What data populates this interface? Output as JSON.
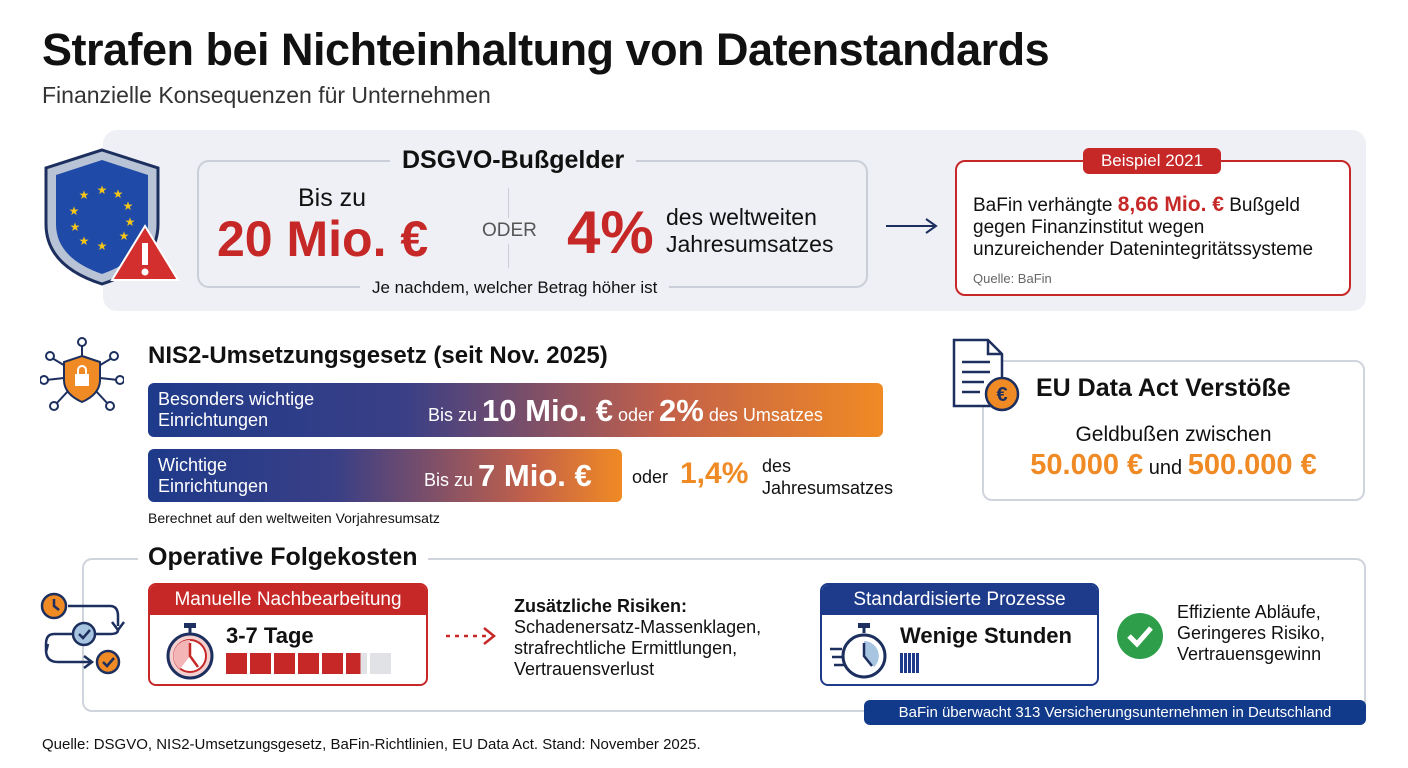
{
  "header": {
    "title": "Strafen bei Nichteinhaltung von Datenstandards",
    "subtitle": "Finanzielle Konsequenzen für Unternehmen"
  },
  "dsgvo": {
    "title": "DSGVO-Bußgelder",
    "bis_zu": "Bis zu",
    "amount": "20 Mio. €",
    "oder": "ODER",
    "percent": "4%",
    "percent_desc_1": "des weltweiten",
    "percent_desc_2": "Jahresumsatzes",
    "note": "Je nachdem, welcher Betrag höher ist"
  },
  "example": {
    "badge": "Beispiel 2021",
    "text_1": "BaFin verhängte ",
    "amount": "8,66 Mio. €",
    "text_2": " Bußgeld",
    "line_2": "gegen Finanzinstitut wegen",
    "line_3": "unzureichender Datenintegritätssysteme",
    "source": "Quelle: BaFin"
  },
  "nis2": {
    "title": "NIS2-Umsetzungsgesetz (seit Nov. 2025)",
    "row1": {
      "label_1": "Besonders wichtige",
      "label_2": "Einrichtungen",
      "bis": "Bis zu",
      "amount": "10 Mio. €",
      "oder": "oder",
      "percent": "2%",
      "desc": "des Umsatzes"
    },
    "row2": {
      "label_1": "Wichtige",
      "label_2": "Einrichtungen",
      "bis": "Bis zu",
      "amount": "7 Mio. €",
      "oder": "oder",
      "percent": "1,4%",
      "desc_1": "des",
      "desc_2": "Jahresumsatzes"
    },
    "note": "Berechnet auf den weltweiten Vorjahresumsatz"
  },
  "data_act": {
    "title": "EU Data Act Verstöße",
    "line": "Geldbußen zwischen",
    "min": "50.000 €",
    "und": "und",
    "max": "500.000 €"
  },
  "operative": {
    "title": "Operative Folgekosten",
    "manual": {
      "title": "Manuelle Nachbearbeitung",
      "duration": "3-7 Tage",
      "progress_filled": 5.7,
      "progress_total": 7
    },
    "risks": {
      "title": "Zusätzliche Risiken:",
      "lines": [
        "Schadenersatz-Massenklagen,",
        "strafrechtliche Ermittlungen,",
        "Vertrauensverlust"
      ]
    },
    "standard": {
      "title": "Standardisierte Prozesse",
      "duration": "Wenige Stunden"
    },
    "benefits": [
      "Effiziente Abläufe,",
      "Geringeres Risiko,",
      "Vertrauensgewinn"
    ],
    "badge": "BaFin überwacht 313 Versicherungsunternehmen in Deutschland"
  },
  "footer": "Quelle: DSGVO, NIS2-Umsetzungsgesetz, BaFin-Richtlinien, EU Data Act. Stand: November 2025.",
  "colors": {
    "red": "#c62828",
    "orange": "#f08a24",
    "blue": "#1e3a8a"
  }
}
